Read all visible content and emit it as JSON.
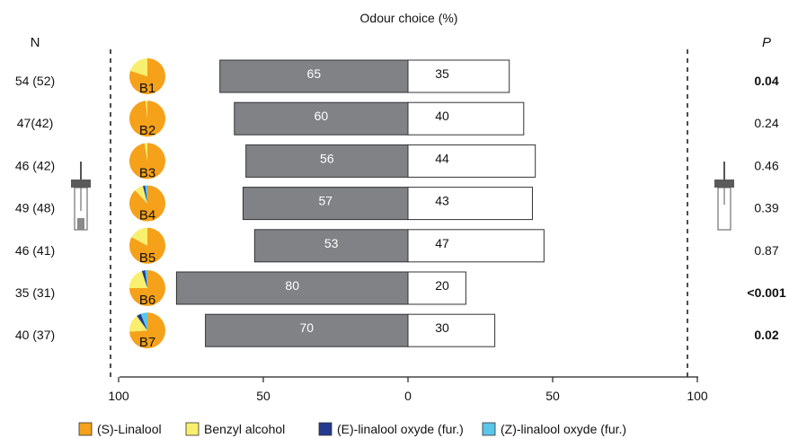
{
  "chart_data": {
    "type": "bar",
    "title": "Odour choice (%)",
    "n_header": "N",
    "p_header": "P",
    "xlim": [
      -100,
      100
    ],
    "x_ticks": [
      "100",
      "50",
      "0",
      "50",
      "100"
    ],
    "x_tick_values": [
      -100,
      -50,
      0,
      50,
      100
    ],
    "left_bar_color": "#808285",
    "right_bar_color": "#ffffff",
    "rows": [
      {
        "n": "54 (52)",
        "blend": "B1",
        "left": 65,
        "right": 35,
        "p": "0.04",
        "p_bold": true,
        "pie": [
          0.8,
          0.2,
          0.0,
          0.0
        ]
      },
      {
        "n": "47(42)",
        "blend": "B2",
        "left": 60,
        "right": 40,
        "p": "0.24",
        "p_bold": false,
        "pie": [
          0.985,
          0.015,
          0.0,
          0.0
        ]
      },
      {
        "n": "46 (42)",
        "blend": "B3",
        "left": 56,
        "right": 44,
        "p": "0.46",
        "p_bold": false,
        "pie": [
          0.975,
          0.025,
          0.0,
          0.0
        ]
      },
      {
        "n": "49 (48)",
        "blend": "B4",
        "left": 57,
        "right": 43,
        "p": "0.39",
        "p_bold": false,
        "pie": [
          0.88,
          0.08,
          0.02,
          0.02
        ]
      },
      {
        "n": "46 (41)",
        "blend": "B5",
        "left": 53,
        "right": 47,
        "p": "0.87",
        "p_bold": false,
        "pie": [
          0.83,
          0.17,
          0.0,
          0.0
        ]
      },
      {
        "n": "35 (31)",
        "blend": "B6",
        "left": 80,
        "right": 20,
        "p": "<0.001",
        "p_bold": true,
        "pie": [
          0.75,
          0.2,
          0.03,
          0.02
        ]
      },
      {
        "n": "40 (37)",
        "blend": "B7",
        "left": 70,
        "right": 30,
        "p": "0.02",
        "p_bold": true,
        "pie": [
          0.74,
          0.16,
          0.04,
          0.06
        ]
      }
    ],
    "legend": [
      {
        "label": "(S)-Linalool",
        "color": "#f5a11a"
      },
      {
        "label": "Benzyl alcohol",
        "color": "#f8ef6e"
      },
      {
        "label": "(E)-linalool oxyde (fur.)",
        "color": "#243a8f"
      },
      {
        "label": "(Z)-linalool oxyde (fur.)",
        "color": "#5bc5ea"
      }
    ]
  }
}
